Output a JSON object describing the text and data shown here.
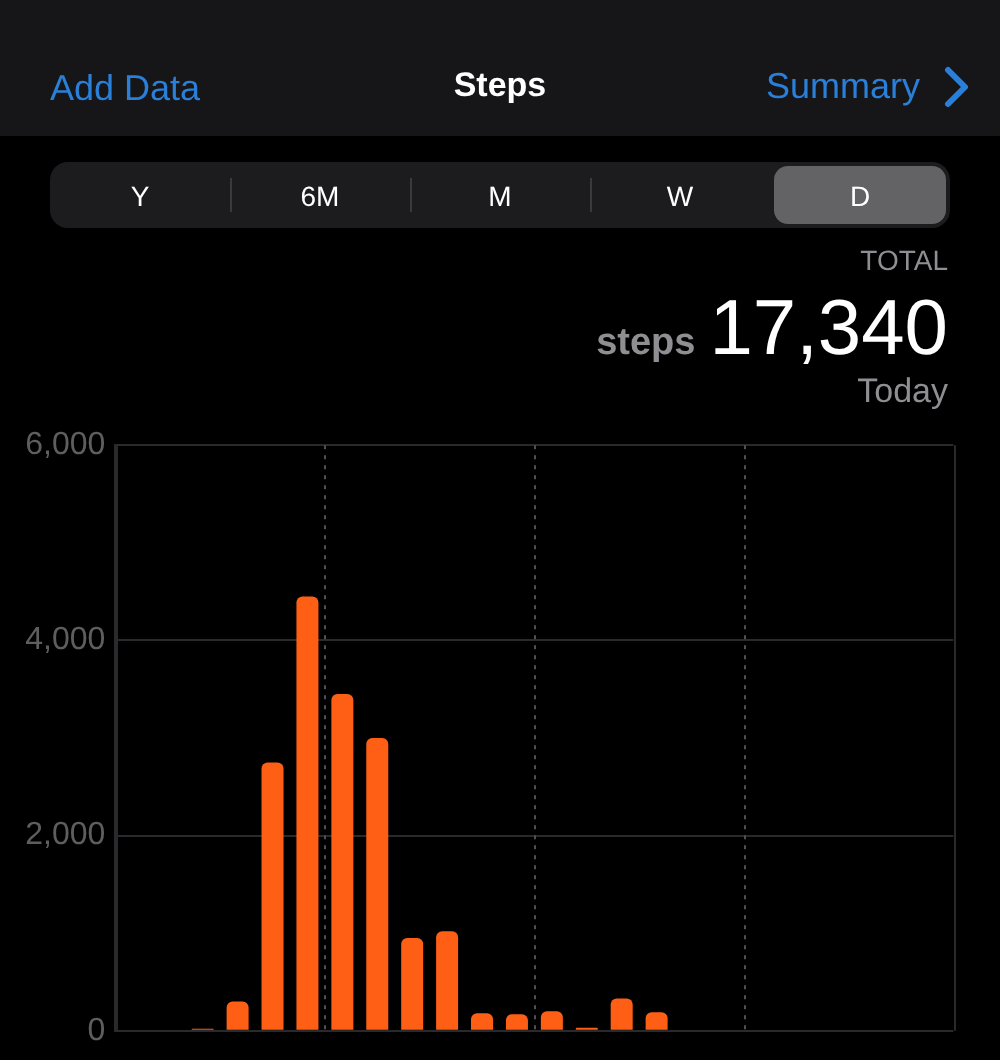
{
  "chart_data": {
    "type": "bar",
    "title": "Steps",
    "annotations": [
      "Add Data",
      "Summary",
      "Y",
      "6M",
      "M",
      "W",
      "D",
      "TOTAL",
      "17,340",
      "steps",
      "Today"
    ],
    "categories": [
      null,
      null,
      null,
      null,
      null,
      null,
      null,
      null,
      null,
      null,
      null,
      null,
      null,
      null,
      null,
      null,
      null,
      null,
      null,
      null,
      null,
      null,
      null,
      null
    ],
    "values": [
      null,
      null,
      20,
      300,
      2750,
      4450,
      3450,
      3000,
      950,
      1020,
      180,
      170,
      200,
      30,
      330,
      190,
      null,
      null,
      null,
      null,
      null,
      null,
      null,
      null
    ],
    "color": "#ff5f15",
    "ylim": [
      0,
      6000
    ],
    "yticks": [
      0,
      {
        "value": 2000,
        "label": "2,000"
      },
      {
        "value": 4000,
        "label": "4,000"
      },
      {
        "value": 6000,
        "label": "6,000"
      }
    ],
    "grid": true,
    "tick_labels": "y"
  }
}
